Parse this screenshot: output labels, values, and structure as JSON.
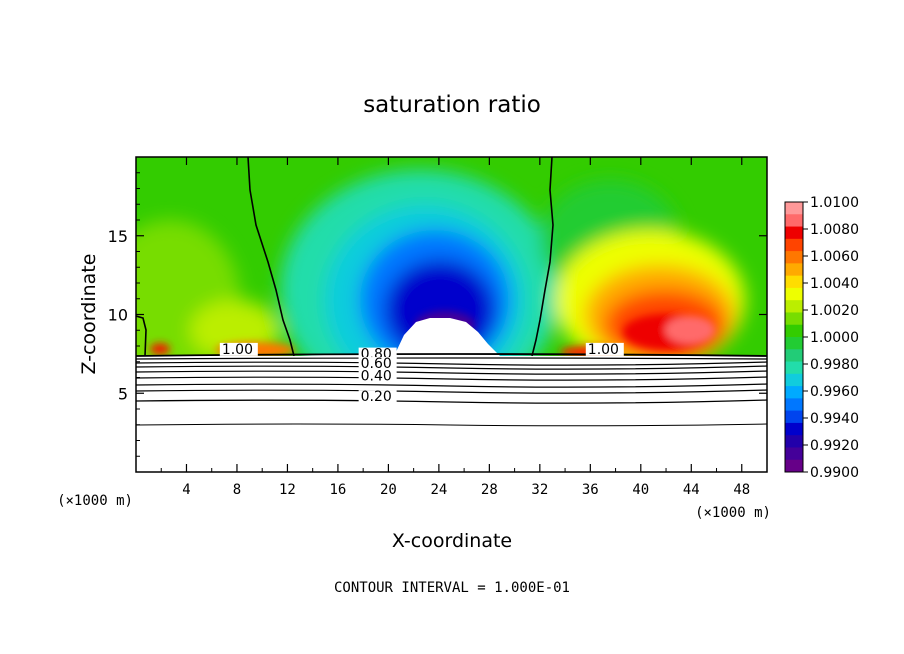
{
  "chart_data": {
    "type": "heatmap",
    "title": "saturation ratio",
    "xlabel": "X-coordinate",
    "ylabel": "Z-coordinate",
    "x_unit_left": "(×1000 m)",
    "x_unit_right": "(×1000 m)",
    "xlim": [
      0,
      50
    ],
    "ylim": [
      0,
      20
    ],
    "x_ticks": [
      4,
      8,
      12,
      16,
      20,
      24,
      28,
      32,
      36,
      40,
      44,
      48
    ],
    "y_ticks": [
      5,
      10,
      15
    ],
    "colorbar": {
      "labels": [
        "1.0100",
        "1.0080",
        "1.0060",
        "1.0040",
        "1.0020",
        "1.0000",
        "0.9980",
        "0.9960",
        "0.9940",
        "0.9920",
        "0.9900"
      ],
      "values": [
        1.01,
        1.008,
        1.006,
        1.004,
        1.002,
        1.0,
        0.998,
        0.996,
        0.994,
        0.992,
        0.99
      ],
      "colors": [
        "#ff9999",
        "#ff6a6a",
        "#ee0000",
        "#ff4400",
        "#ff7700",
        "#ffaa00",
        "#ffdd00",
        "#eeff00",
        "#bbee00",
        "#77dd00",
        "#33cc00",
        "#22cc33",
        "#22cc77",
        "#22ddaa",
        "#11ccdd",
        "#00aaff",
        "#0077ff",
        "#0044ee",
        "#0000cc",
        "#2200aa",
        "#440099",
        "#660088"
      ]
    },
    "contour_labels": [
      {
        "text": "1.00",
        "x": 6.8,
        "y": 7.5
      },
      {
        "text": "1.00",
        "x": 35.8,
        "y": 7.5
      },
      {
        "text": "0.80",
        "x": 17.8,
        "y": 7.2
      },
      {
        "text": "0.60",
        "x": 17.8,
        "y": 6.6
      },
      {
        "text": "0.40",
        "x": 17.8,
        "y": 5.8
      },
      {
        "text": "0.20",
        "x": 17.8,
        "y": 4.5
      }
    ],
    "grid": false,
    "legend": "colorbar right"
  },
  "footer": {
    "contour_interval": "CONTOUR INTERVAL = 1.000E-01"
  }
}
